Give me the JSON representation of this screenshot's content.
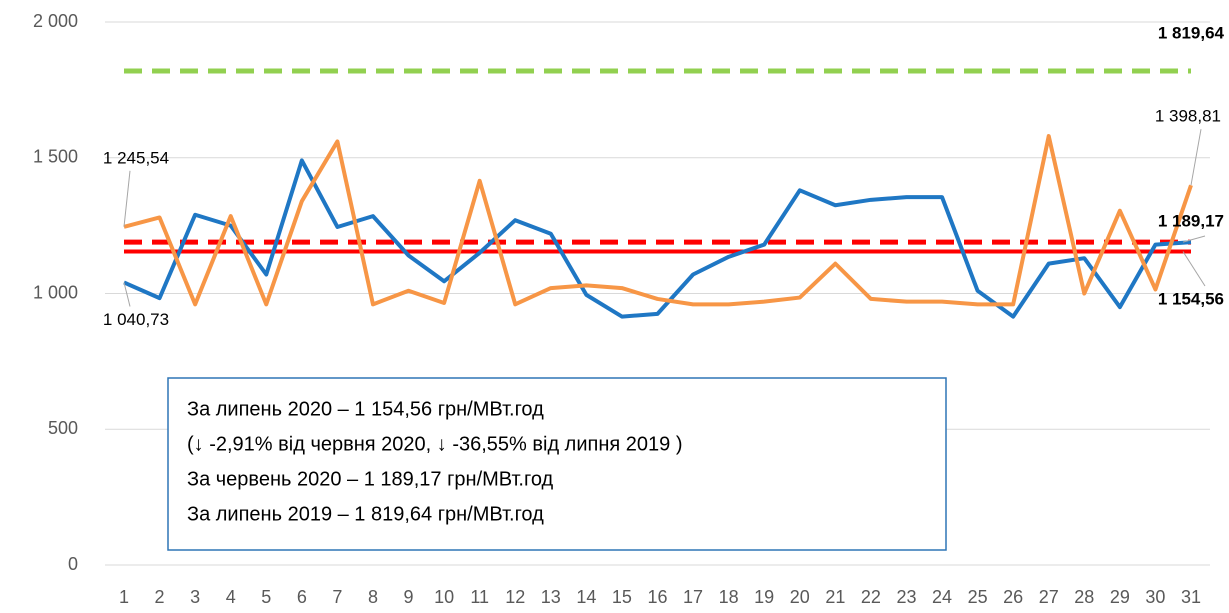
{
  "chart_data": {
    "type": "line",
    "categories": [
      "1",
      "2",
      "3",
      "4",
      "5",
      "6",
      "7",
      "8",
      "9",
      "10",
      "11",
      "12",
      "13",
      "14",
      "15",
      "16",
      "17",
      "18",
      "19",
      "20",
      "21",
      "22",
      "23",
      "24",
      "25",
      "26",
      "27",
      "28",
      "29",
      "30",
      "31"
    ],
    "series": [
      {
        "color": "#1f77c4",
        "values": [
          1040.73,
          983,
          1290,
          1250,
          1070,
          1490,
          1245,
          1285,
          1140,
          1045,
          1150,
          1270,
          1220,
          995,
          915,
          925,
          1070,
          1135,
          1180,
          1380,
          1325,
          1345,
          1355,
          1355,
          1010,
          915,
          1110,
          1130,
          950,
          1180,
          1189
        ],
        "value_labels": [
          "1 040,73",
          null,
          null,
          null,
          null,
          null,
          null,
          null,
          null,
          null,
          null,
          null,
          null,
          null,
          null,
          null,
          null,
          null,
          null,
          null,
          null,
          null,
          null,
          null,
          null,
          null,
          null,
          null,
          null,
          null,
          null
        ]
      },
      {
        "color": "#f79646",
        "values": [
          1245.54,
          1280,
          960,
          1285,
          960,
          1340,
          1560,
          960,
          1010,
          965,
          1415,
          960,
          1020,
          1030,
          1020,
          980,
          960,
          960,
          970,
          985,
          1110,
          980,
          970,
          970,
          960,
          960,
          1580,
          1000,
          1305,
          1015,
          1398.81
        ],
        "value_labels": [
          "1 245,54",
          null,
          null,
          null,
          null,
          null,
          null,
          null,
          null,
          null,
          null,
          null,
          null,
          null,
          null,
          null,
          null,
          null,
          null,
          null,
          null,
          null,
          null,
          null,
          null,
          null,
          null,
          null,
          null,
          null,
          "1 398,81"
        ]
      }
    ],
    "reference_lines": [
      {
        "value": 1819.64,
        "label": "1 819,64",
        "color": "#92d050",
        "style": "dashed"
      },
      {
        "value": 1189.17,
        "label": "1 189,17",
        "color": "#ff0000",
        "style": "dashed"
      },
      {
        "value": 1154.56,
        "label": "1 154,56",
        "color": "#ff0000",
        "style": "solid"
      }
    ],
    "ylim": [
      0,
      2000
    ],
    "yticks": [
      0,
      500,
      {
        "value": 1000,
        "label": "1 000"
      },
      {
        "value": 1500,
        "label": "1 500"
      },
      {
        "value": 2000,
        "label": "2 000"
      }
    ],
    "grid": true,
    "annotation": [
      "За липень 2020 – 1 154,56 грн/МВт.год",
      "(↓ -2,91% від червня 2020, ↓ -36,55% від липня 2019 )",
      "За червень 2020 – 1 189,17 грн/МВт.год",
      "За липень 2019 – 1 819,64 грн/МВт.год"
    ]
  }
}
